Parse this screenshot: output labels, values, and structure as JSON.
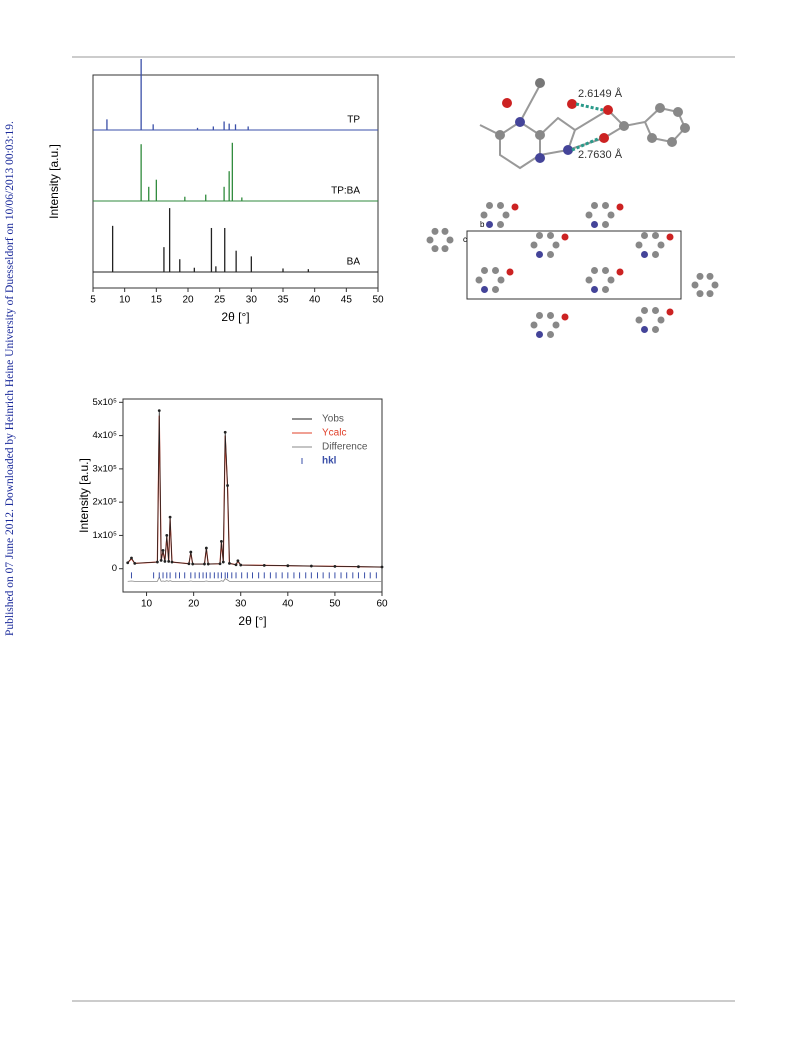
{
  "sidebar": "Published on 07 June 2012. Downloaded by Heinrich Heine University of Duesseldorf on 10/06/2013 00:03:19.",
  "structure": {
    "distances": [
      "2.6149 Å",
      "2.7630 Å"
    ],
    "axes": [
      "b",
      "c"
    ]
  },
  "chart_data": [
    {
      "type": "stick",
      "xlabel": "2θ [°]",
      "ylabel": "Intensity [a.u.]",
      "xlim": [
        5,
        50
      ],
      "xticks": [
        5,
        10,
        15,
        20,
        25,
        30,
        35,
        40,
        45,
        50
      ],
      "ylim": [
        0,
        100
      ],
      "series": [
        {
          "name": "TP",
          "color": "#3a4fa8",
          "x": [
            7.2,
            12.6,
            14.5,
            21.5,
            24.0,
            25.7,
            26.5,
            27.5,
            29.5
          ],
          "values": [
            15,
            100,
            8,
            3,
            5,
            12,
            9,
            8,
            5
          ]
        },
        {
          "name": "TP:BA",
          "color": "#2f8a3c",
          "x": [
            12.6,
            13.8,
            15.0,
            19.5,
            22.8,
            25.7,
            26.5,
            27.0,
            28.5
          ],
          "values": [
            80,
            20,
            30,
            6,
            9,
            20,
            42,
            82,
            5
          ]
        },
        {
          "name": "BA",
          "color": "#222222",
          "x": [
            8.1,
            16.2,
            17.1,
            18.7,
            21.0,
            23.7,
            24.4,
            25.8,
            27.6,
            30.0,
            35.0,
            39.0
          ],
          "values": [
            65,
            35,
            90,
            18,
            6,
            62,
            8,
            62,
            30,
            22,
            5,
            4
          ]
        }
      ]
    },
    {
      "type": "line",
      "xlabel": "2θ [°]",
      "ylabel": "Intensity [a.u.]",
      "xlim": [
        5,
        60
      ],
      "xticks": [
        10,
        20,
        30,
        40,
        50,
        60
      ],
      "ylim": [
        -70000,
        510000
      ],
      "yticks": [
        0,
        {
          "value": 100000,
          "label": "1x10⁵"
        },
        {
          "value": 200000,
          "label": "2x10⁵"
        },
        {
          "value": 300000,
          "label": "3x10⁵"
        },
        {
          "value": 400000,
          "label": "4x10⁵"
        },
        {
          "value": 500000,
          "label": "5x10⁵"
        }
      ],
      "x": [
        6,
        6.8,
        7.5,
        12.3,
        12.7,
        13.1,
        13.5,
        13.9,
        14.3,
        14.7,
        15.0,
        15.4,
        19.0,
        19.4,
        19.8,
        22.3,
        22.7,
        23.1,
        25.6,
        25.9,
        26.3,
        26.7,
        27.2,
        27.6,
        29.0,
        29.4,
        30,
        35,
        40,
        45,
        50,
        55,
        60
      ],
      "series": [
        {
          "name": "Yobs",
          "color": "#222222",
          "values": [
            18000,
            32000,
            16000,
            20000,
            475000,
            25000,
            55000,
            22000,
            100000,
            22000,
            155000,
            20000,
            15000,
            50000,
            14000,
            14000,
            62000,
            14000,
            15000,
            82000,
            20000,
            410000,
            250000,
            16000,
            12000,
            24000,
            11000,
            10000,
            9000,
            8000,
            7000,
            6000,
            5000
          ]
        },
        {
          "name": "Ycalc",
          "color": "#e0402a",
          "values": [
            18000,
            30000,
            16000,
            20000,
            460000,
            25000,
            52000,
            22000,
            95000,
            22000,
            150000,
            20000,
            15000,
            48000,
            14000,
            14000,
            60000,
            14000,
            15000,
            80000,
            20000,
            400000,
            245000,
            16000,
            12000,
            22000,
            11000,
            10000,
            9000,
            8000,
            7000,
            6000,
            5000
          ]
        },
        {
          "name": "Difference",
          "color": "#888888",
          "values": [
            -38000,
            -37000,
            -38000,
            -38000,
            -25000,
            -38000,
            -37000,
            -38000,
            -36000,
            -38000,
            -36000,
            -38000,
            -38000,
            -37000,
            -38000,
            -38000,
            -37000,
            -38000,
            -38000,
            -36000,
            -38000,
            -30000,
            -34000,
            -38000,
            -38000,
            -38000,
            -38000,
            -38000,
            -38000,
            -38000,
            -38000,
            -38000,
            -38000
          ]
        }
      ],
      "hkl": {
        "name": "hkl",
        "color": "#3a4fa8",
        "x": [
          6.8,
          11.5,
          12.7,
          13.5,
          14.3,
          15.0,
          16.2,
          17.0,
          18.1,
          19.4,
          20.3,
          21.2,
          22.0,
          22.7,
          23.5,
          24.4,
          25.2,
          25.9,
          26.7,
          27.2,
          28.1,
          29.0,
          30.2,
          31.4,
          32.5,
          33.8,
          35.0,
          36.3,
          37.5,
          38.8,
          40.0,
          41.3,
          42.5,
          43.8,
          45.0,
          46.3,
          47.5,
          48.8,
          50.0,
          51.3,
          52.5,
          53.8,
          55.0,
          56.3,
          57.5,
          58.8
        ]
      }
    }
  ]
}
